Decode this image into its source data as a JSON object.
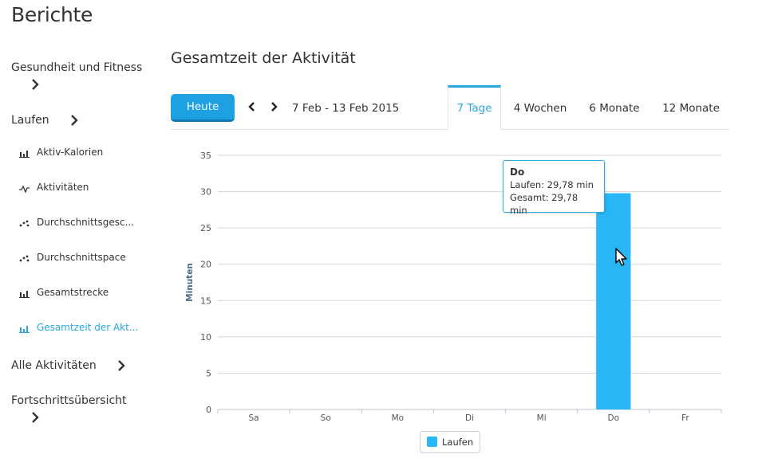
{
  "page": {
    "title": "Berichte"
  },
  "sidebar": {
    "groups": [
      {
        "label": "Gesundheit und Fitness"
      },
      {
        "label": "Laufen"
      },
      {
        "label": "Alle Aktivitäten"
      },
      {
        "label": "Fortschrittsübersicht"
      }
    ],
    "items": [
      {
        "label": "Aktiv-Kalorien",
        "icon": "bar-chart-icon"
      },
      {
        "label": "Aktivitäten",
        "icon": "line-chart-icon"
      },
      {
        "label": "Durchschnittsgesc...",
        "icon": "scatter-chart-icon"
      },
      {
        "label": "Durchschnittspace",
        "icon": "scatter-chart-icon"
      },
      {
        "label": "Gesamtstrecke",
        "icon": "bar-chart-icon"
      },
      {
        "label": "Gesamtzeit der Akt...",
        "icon": "bar-chart-icon",
        "active": true
      }
    ]
  },
  "main": {
    "title": "Gesamtzeit der Aktivität",
    "today_label": "Heute",
    "date_range": "7 Feb - 13 Feb 2015",
    "tabs": [
      {
        "label": "7 Tage",
        "active": true
      },
      {
        "label": "4 Wochen"
      },
      {
        "label": "6 Monate"
      },
      {
        "label": "12 Monate"
      }
    ],
    "accent_color": "#2aa8e0",
    "button_color": "#1da1e3"
  },
  "tooltip": {
    "title": "Do",
    "line1": "Laufen: 29,78 min",
    "line2": "Gesamt: 29,78 min"
  },
  "legend": {
    "label": "Laufen",
    "color": "#29b6f6"
  },
  "chart_data": {
    "type": "bar",
    "categories": [
      "Sa",
      "So",
      "Mo",
      "Di",
      "Mi",
      "Do",
      "Fr"
    ],
    "series": [
      {
        "name": "Laufen",
        "values": [
          0,
          0,
          0,
          0,
          0,
          29.78,
          0
        ],
        "color": "#29b6f6"
      }
    ],
    "ylabel": "Minuten",
    "xlabel": "",
    "ylim": [
      0,
      35
    ],
    "yticks": [
      0,
      5,
      10,
      15,
      20,
      25,
      30,
      35
    ],
    "grid": true,
    "legend_position": "bottom-center"
  }
}
